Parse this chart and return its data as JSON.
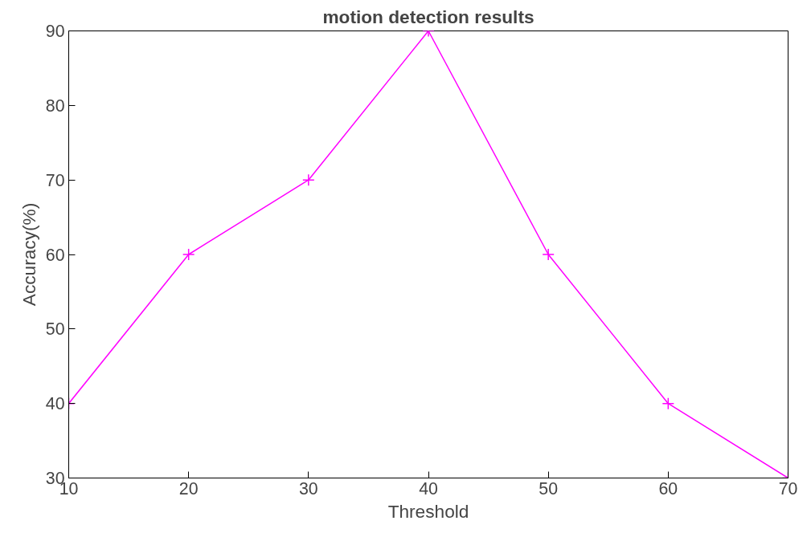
{
  "chart_data": {
    "type": "line",
    "title": "motion detection results",
    "xlabel": "Threshold",
    "ylabel": "Accuracy(%)",
    "x": [
      10,
      20,
      30,
      40,
      50,
      60,
      70
    ],
    "series": [
      {
        "color": "#ff00ff",
        "values": [
          40,
          60,
          70,
          90,
          60,
          40,
          30
        ]
      }
    ],
    "xlim": [
      10,
      70
    ],
    "ylim": [
      30,
      90
    ],
    "xticks": [
      10,
      20,
      30,
      40,
      50,
      60,
      70
    ],
    "yticks": [
      30,
      40,
      50,
      60,
      70,
      80,
      90
    ],
    "marker": "cross",
    "line_style": "solid",
    "grid": false
  }
}
